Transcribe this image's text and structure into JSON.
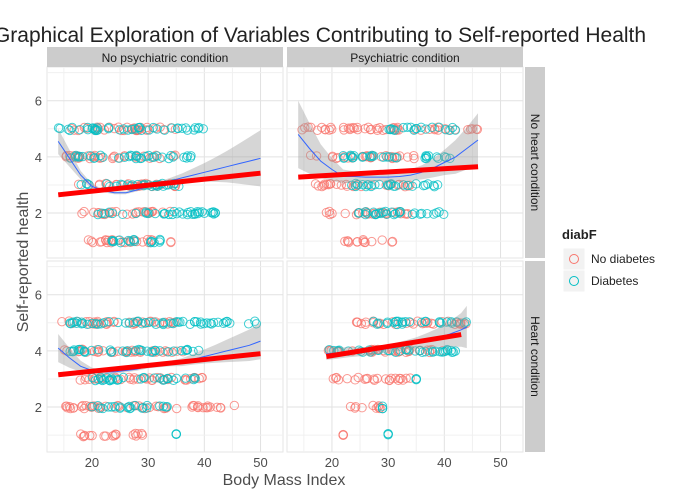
{
  "chart_data": {
    "type": "scatter",
    "title": "Graphical Exploration of Variables Contributing to Self-reported Health",
    "xlabel": "Body Mass Index",
    "ylabel": "Self-reported health",
    "xlim": [
      12,
      54
    ],
    "ylim": [
      0.4,
      7.2
    ],
    "x_ticks": [
      20,
      30,
      40,
      50
    ],
    "y_ticks": [
      2,
      4,
      6
    ],
    "grid": true,
    "legend": {
      "title": "diabF",
      "position": "right",
      "entries": [
        {
          "label": "No diabetes",
          "color": "#F8766D"
        },
        {
          "label": "Diabetes",
          "color": "#00BFC4"
        }
      ]
    },
    "col_facets": [
      "No psychiatric condition",
      "Psychiatric condition"
    ],
    "row_facets": [
      "No heart condition",
      "Heart condition"
    ],
    "panels": [
      {
        "row": 0,
        "col": 0,
        "linear_fit": {
          "x": [
            14,
            50
          ],
          "y": [
            2.65,
            3.42
          ]
        },
        "smooth": {
          "x": [
            14,
            16,
            18,
            20,
            22,
            24,
            26,
            28,
            30,
            32,
            34,
            36,
            38,
            40,
            42,
            44,
            46,
            48,
            50
          ],
          "y": [
            4.55,
            3.95,
            3.35,
            2.95,
            2.8,
            2.72,
            2.72,
            2.82,
            2.95,
            3.05,
            3.15,
            3.25,
            3.35,
            3.45,
            3.55,
            3.65,
            3.75,
            3.85,
            3.95
          ],
          "se": [
            0.45,
            0.3,
            0.15,
            0.08,
            0.06,
            0.05,
            0.05,
            0.05,
            0.06,
            0.08,
            0.11,
            0.16,
            0.24,
            0.33,
            0.44,
            0.56,
            0.7,
            0.85,
            1.0
          ]
        },
        "points": {
          "no_diabetes": [
            [
              1,
              19,
              35
            ],
            [
              2,
              18,
              35
            ],
            [
              3,
              17,
              35
            ],
            [
              4,
              15,
              37
            ],
            [
              5,
              14,
              35
            ]
          ],
          "diabetes": [
            [
              1,
              22,
              33
            ],
            [
              2,
              19,
              42
            ],
            [
              3,
              18,
              36
            ],
            [
              4,
              16,
              38
            ],
            [
              5,
              14,
              40
            ]
          ]
        }
      },
      {
        "row": 0,
        "col": 1,
        "linear_fit": {
          "x": [
            14,
            46
          ],
          "y": [
            3.28,
            3.65
          ]
        },
        "smooth": {
          "x": [
            14,
            16,
            18,
            20,
            22,
            24,
            26,
            28,
            30,
            32,
            34,
            36,
            38,
            40,
            42,
            44,
            46
          ],
          "y": [
            4.8,
            4.3,
            3.85,
            3.55,
            3.3,
            3.3,
            3.28,
            3.28,
            3.28,
            3.3,
            3.35,
            3.45,
            3.6,
            3.8,
            4.0,
            4.3,
            4.6
          ],
          "se": [
            1.2,
            0.9,
            0.6,
            0.4,
            0.25,
            0.18,
            0.16,
            0.15,
            0.15,
            0.17,
            0.2,
            0.25,
            0.33,
            0.45,
            0.6,
            0.75,
            0.95
          ]
        },
        "points": {
          "no_diabetes": [
            [
              1,
              22,
              31
            ],
            [
              2,
              18,
              34
            ],
            [
              3,
              17,
              34
            ],
            [
              4,
              16,
              35
            ],
            [
              5,
              14,
              46
            ]
          ],
          "diabetes": [
            [
              2,
              24,
              42
            ],
            [
              3,
              23,
              40
            ],
            [
              4,
              22,
              41
            ],
            [
              5,
              30,
              42
            ]
          ]
        }
      },
      {
        "row": 1,
        "col": 0,
        "linear_fit": {
          "x": [
            14,
            50
          ],
          "y": [
            3.15,
            3.9
          ]
        },
        "smooth": {
          "x": [
            14,
            16,
            18,
            20,
            22,
            24,
            26,
            28,
            30,
            32,
            34,
            36,
            38,
            40,
            42,
            44,
            46,
            48,
            50
          ],
          "y": [
            4.1,
            3.75,
            3.45,
            3.3,
            3.25,
            3.25,
            3.3,
            3.35,
            3.45,
            3.5,
            3.55,
            3.6,
            3.7,
            3.8,
            3.9,
            4.0,
            4.1,
            4.2,
            4.35
          ],
          "se": [
            0.5,
            0.35,
            0.2,
            0.1,
            0.07,
            0.06,
            0.06,
            0.06,
            0.07,
            0.08,
            0.1,
            0.14,
            0.19,
            0.25,
            0.32,
            0.4,
            0.48,
            0.56,
            0.65
          ]
        },
        "points": {
          "no_diabetes": [
            [
              1,
              18,
              29
            ],
            [
              2,
              15,
              46
            ],
            [
              3,
              17,
              41
            ],
            [
              4,
              15,
              37
            ],
            [
              5,
              14,
              35
            ]
          ],
          "diabetes": [
            [
              1,
              35,
              35
            ],
            [
              2,
              20,
              34
            ],
            [
              3,
              20,
              40
            ],
            [
              4,
              16,
              39
            ],
            [
              5,
              15,
              50
            ]
          ]
        }
      },
      {
        "row": 1,
        "col": 1,
        "linear_fit": {
          "x": [
            19,
            43
          ],
          "y": [
            3.8,
            4.58
          ]
        },
        "smooth": {
          "x": [
            19,
            21,
            23,
            25,
            27,
            29,
            31,
            33,
            35,
            37,
            39,
            41,
            43,
            44
          ],
          "y": [
            3.9,
            3.92,
            3.95,
            3.97,
            4.0,
            4.05,
            4.12,
            4.2,
            4.28,
            4.38,
            4.48,
            4.6,
            4.75,
            4.85
          ],
          "se": [
            0.22,
            0.2,
            0.18,
            0.16,
            0.15,
            0.14,
            0.15,
            0.17,
            0.2,
            0.26,
            0.34,
            0.45,
            0.6,
            0.75
          ]
        },
        "points": {
          "no_diabetes": [
            [
              1,
              22,
              22
            ],
            [
              2,
              23,
              29
            ],
            [
              3,
              20,
              35
            ],
            [
              4,
              19,
              40
            ],
            [
              5,
              24,
              44
            ]
          ],
          "diabetes": [
            [
              1,
              30,
              30
            ],
            [
              2,
              29,
              29
            ],
            [
              3,
              35,
              35
            ],
            [
              4,
              19,
              42
            ],
            [
              5,
              27,
              44
            ]
          ]
        }
      }
    ]
  }
}
